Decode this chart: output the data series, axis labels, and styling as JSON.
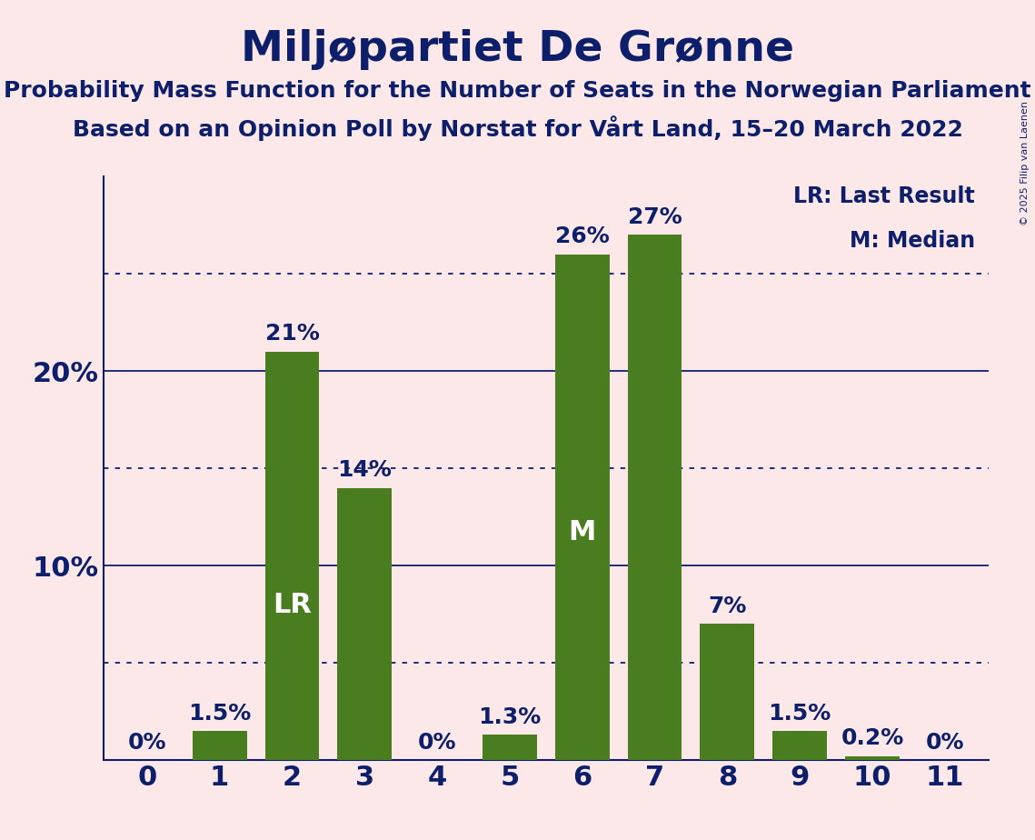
{
  "title": "Miljøpartiet De Grønne",
  "subtitle1": "Probability Mass Function for the Number of Seats in the Norwegian Parliament",
  "subtitle2": "Based on an Opinion Poll by Norstat for Vårt Land, 15–20 March 2022",
  "categories": [
    0,
    1,
    2,
    3,
    4,
    5,
    6,
    7,
    8,
    9,
    10,
    11
  ],
  "values": [
    0.0,
    1.5,
    21.0,
    14.0,
    0.0,
    1.3,
    26.0,
    27.0,
    7.0,
    1.5,
    0.2,
    0.0
  ],
  "bar_labels": [
    "0%",
    "1.5%",
    "21%",
    "14%",
    "0%",
    "1.3%",
    "26%",
    "27%",
    "7%",
    "1.5%",
    "0.2%",
    "0%"
  ],
  "bar_color": "#4a7c20",
  "background_color": "#fce8e8",
  "text_color": "#0d1f6b",
  "title_fontsize": 34,
  "subtitle_fontsize": 18,
  "ytick_fontsize": 22,
  "xtick_fontsize": 22,
  "bar_label_fontsize": 18,
  "yticks_solid": [
    10,
    20
  ],
  "yticks_dotted": [
    5,
    15,
    25
  ],
  "ylim": [
    0,
    30
  ],
  "lr_bar_index": 2,
  "m_bar_index": 6,
  "legend_line1": "LR: Last Result",
  "legend_line2": "M: Median",
  "legend_fontsize": 17,
  "copyright_text": "© 2025 Filip van Laenen",
  "copyright_fontsize": 8,
  "inner_label_fontsize": 22
}
